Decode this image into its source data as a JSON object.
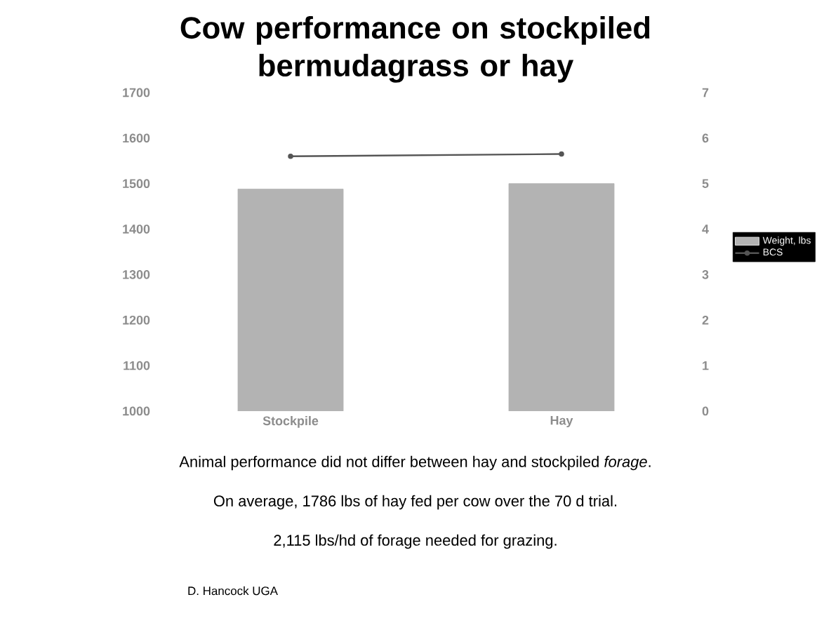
{
  "chart_data": {
    "type": "bar",
    "title": "Cow performance on stockpiled bermudagrass or hay",
    "categories": [
      "Stockpile",
      "Hay"
    ],
    "series": [
      {
        "name": "Weight, lbs",
        "color": "#b3b3b3",
        "values": [
          1488,
          1500
        ]
      },
      {
        "name": "BCS",
        "type": "line",
        "axis": "y2",
        "color": "#555555",
        "values": [
          5.6,
          5.65
        ]
      }
    ],
    "marker": "circle",
    "line_style": "solid",
    "ylim": [
      1000,
      1700
    ],
    "yticks": [
      1000,
      1100,
      1200,
      1300,
      1400,
      1500,
      1600,
      1700
    ],
    "y2lim": [
      0,
      7
    ],
    "y2ticks": [
      0,
      1,
      2,
      3,
      4,
      5,
      6,
      7
    ],
    "legend": "right",
    "annotations": [
      "Animal performance did not differ between hay and stockpiled *forage*.",
      "On average, 1786 lbs of hay fed per cow over the 70 d trial.",
      "2,115 lbs/hd of forage needed for grazing.",
      "D. Hancock UGA"
    ]
  }
}
